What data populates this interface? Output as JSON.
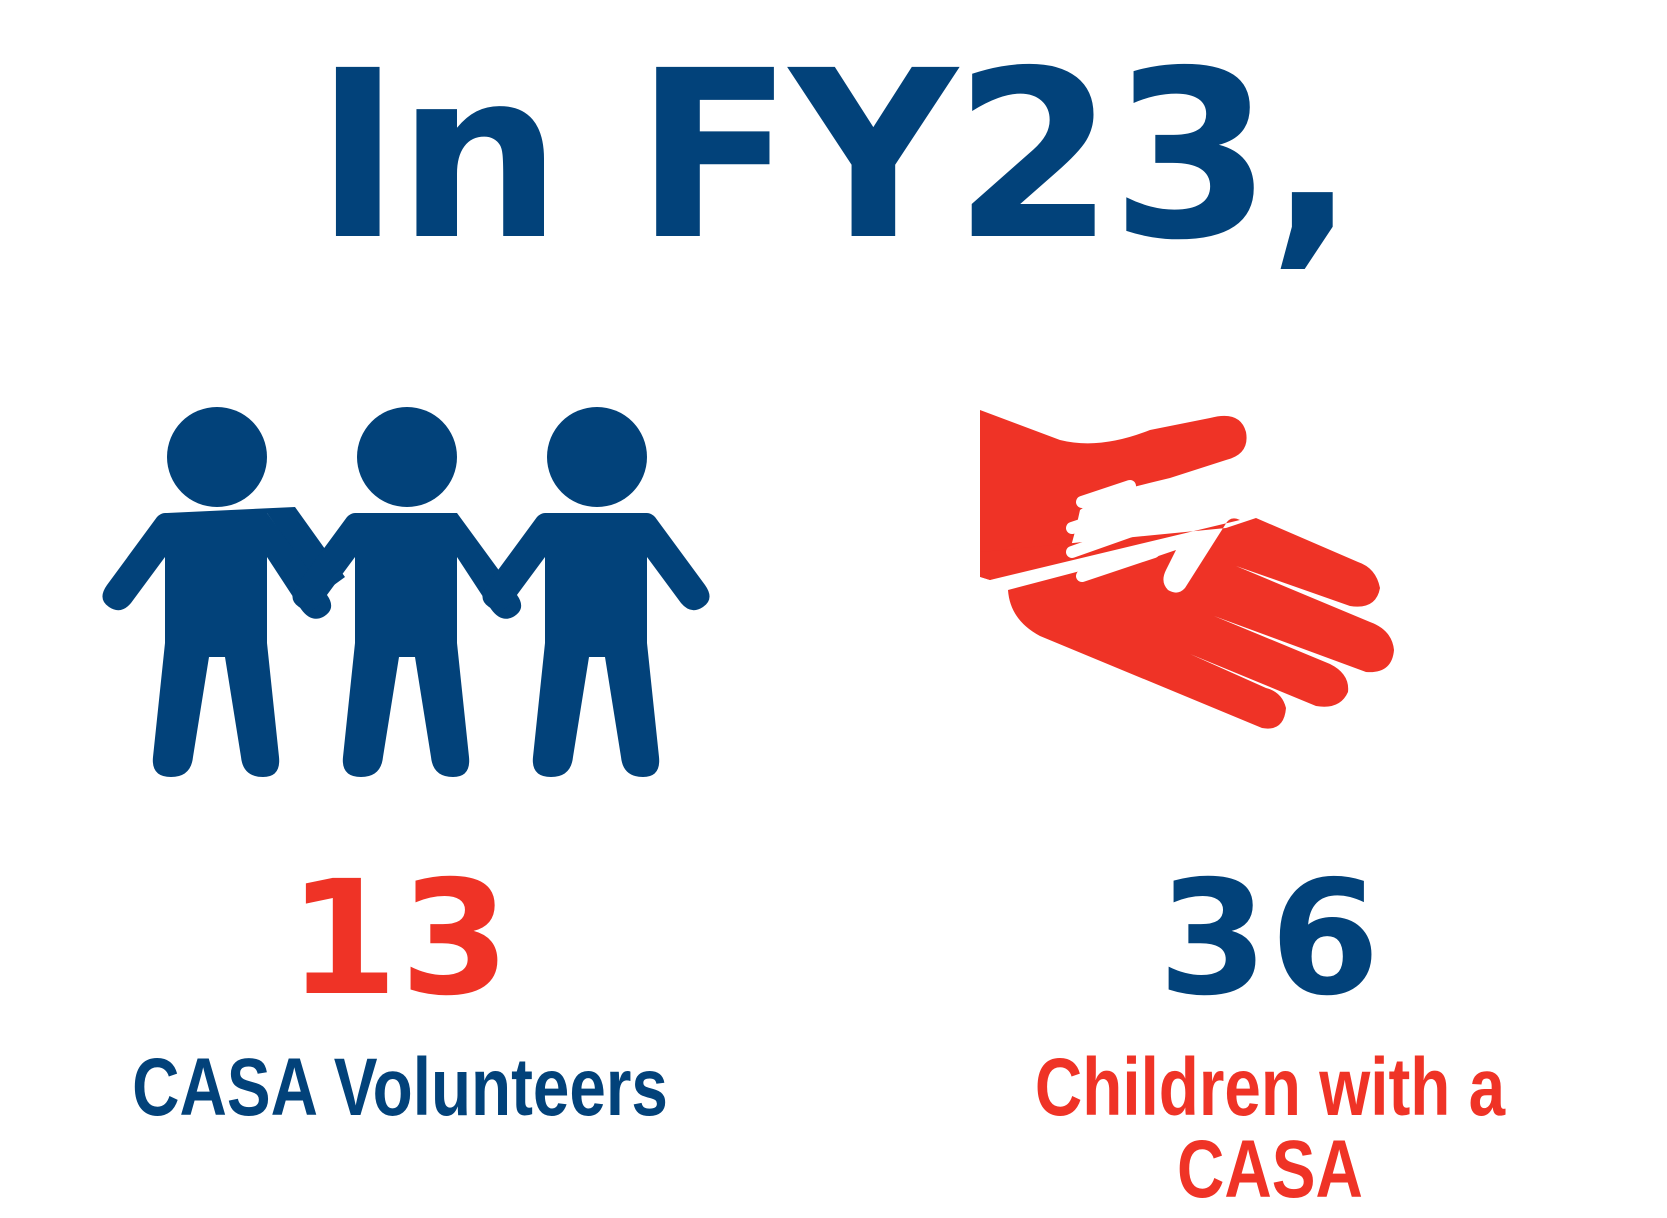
{
  "headline": "In FY23,",
  "colors": {
    "navy": "#02427a",
    "red": "#ef3326"
  },
  "volunteers": {
    "icon": "people-holding-hands-icon",
    "number": "13",
    "label": "CASA Volunteers"
  },
  "children": {
    "icon": "helping-hand-icon",
    "number": "36",
    "label": "Children with a CASA"
  }
}
